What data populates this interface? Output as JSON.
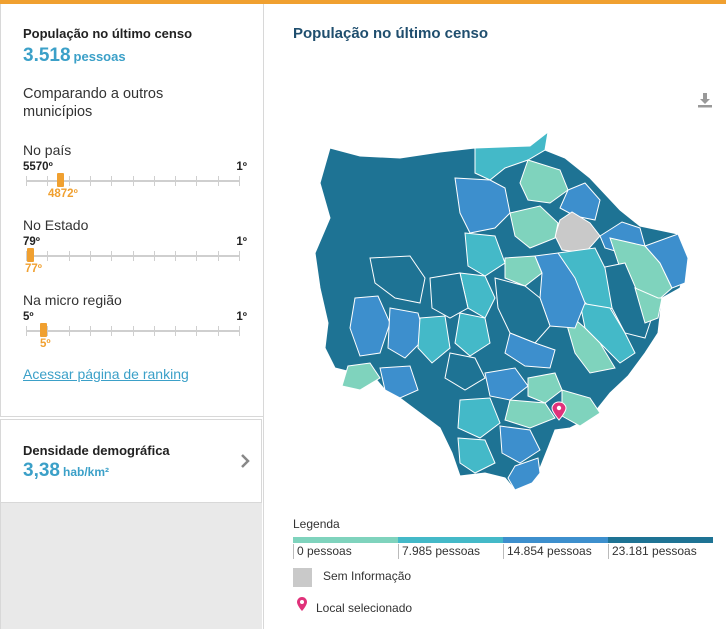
{
  "population": {
    "title": "População no último censo",
    "value": "3.518",
    "unit": "pessoas"
  },
  "comparison": {
    "heading": "Comparando a outros municípios",
    "rankings": [
      {
        "label": "No país",
        "max": "5570º",
        "min": "1º",
        "position": "4872º",
        "total": 5570,
        "rank": 4872
      },
      {
        "label": "No Estado",
        "max": "79º",
        "min": "1º",
        "position": "77º",
        "total": 79,
        "rank": 77
      },
      {
        "label": "Na micro região",
        "max": "5º",
        "min": "1º",
        "position": "5º",
        "total": 5,
        "rank": 5
      }
    ],
    "ranking_link": "Acessar página de ranking"
  },
  "density": {
    "title": "Densidade demográfica",
    "value": "3,38",
    "unit": "hab/km²"
  },
  "map": {
    "title": "População no último censo",
    "colors": {
      "class1": "#7fd3bd",
      "class2": "#44b9c8",
      "class3": "#3d8fcd",
      "class4": "#1e7394",
      "no_info": "#c9c9c9",
      "selected_pin": "#e0327a"
    }
  },
  "legend": {
    "title": "Legenda",
    "classes": [
      {
        "label": "0 pessoas",
        "color": "#7fd3bd"
      },
      {
        "label": "7.985 pessoas",
        "color": "#44b9c8"
      },
      {
        "label": "14.854 pessoas",
        "color": "#3d8fcd"
      },
      {
        "label": "23.181 pessoas",
        "color": "#1e7394"
      }
    ],
    "no_info": "Sem Informação",
    "selected": "Local selecionado"
  }
}
